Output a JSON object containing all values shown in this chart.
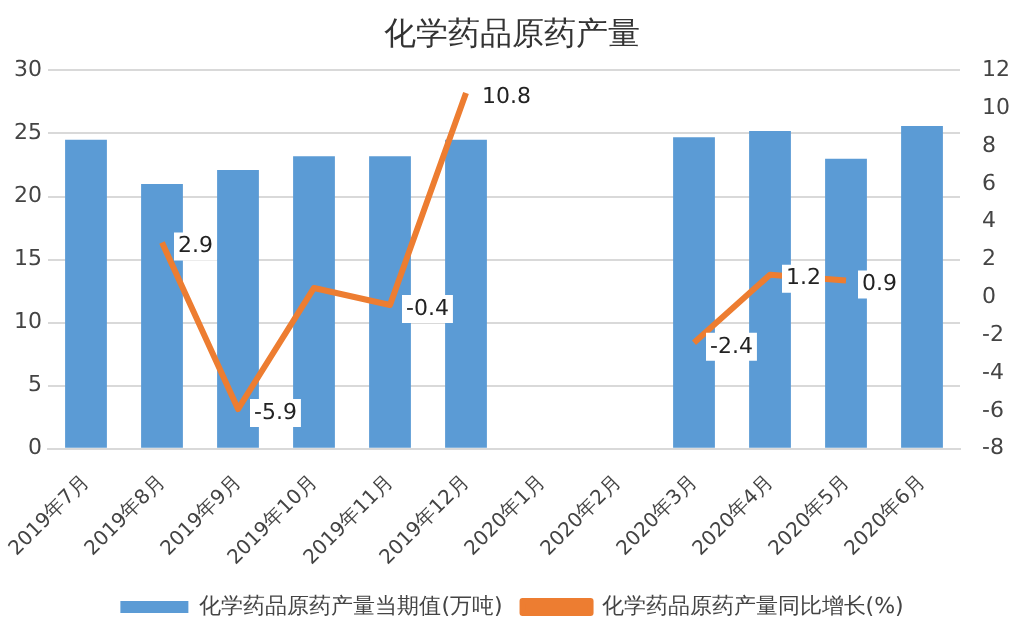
{
  "chart_data": {
    "type": "bar",
    "title": "化学药品原药产量",
    "categories": [
      "2019年7月",
      "2019年8月",
      "2019年9月",
      "2019年10月",
      "2019年11月",
      "2019年12月",
      "2020年1月",
      "2020年2月",
      "2020年3月",
      "2020年4月",
      "2020年5月",
      "2020年6月"
    ],
    "series": [
      {
        "name": "化学药品原药产量当期值(万吨)",
        "color": "#5b9bd5",
        "values": [
          24.5,
          21.0,
          22.1,
          23.2,
          23.2,
          24.5,
          null,
          null,
          24.7,
          25.2,
          23.0,
          25.6
        ]
      },
      {
        "name": "化学药品原药产量同比增长(%)",
        "type": "line",
        "axis": "y2",
        "color": "#ed7d31",
        "values": [
          null,
          2.9,
          -5.9,
          0.5,
          -0.4,
          10.8,
          null,
          null,
          -2.4,
          1.2,
          0.9,
          null
        ],
        "value_labels": [
          null,
          "2.9",
          "-5.9",
          null,
          "-0.4",
          "10.8",
          null,
          null,
          "-2.4",
          "1.2",
          "0.9",
          null
        ]
      }
    ],
    "ylim": [
      0,
      30
    ],
    "yticks": [
      0,
      5,
      10,
      15,
      20,
      25,
      30
    ],
    "y2lim": [
      -8,
      12
    ],
    "y2ticks": [
      -8,
      -6,
      -4,
      -2,
      0,
      2,
      4,
      6,
      8,
      10,
      12
    ],
    "grid": "y",
    "legend": "bottom",
    "marker": "none",
    "line_style": "solid"
  }
}
